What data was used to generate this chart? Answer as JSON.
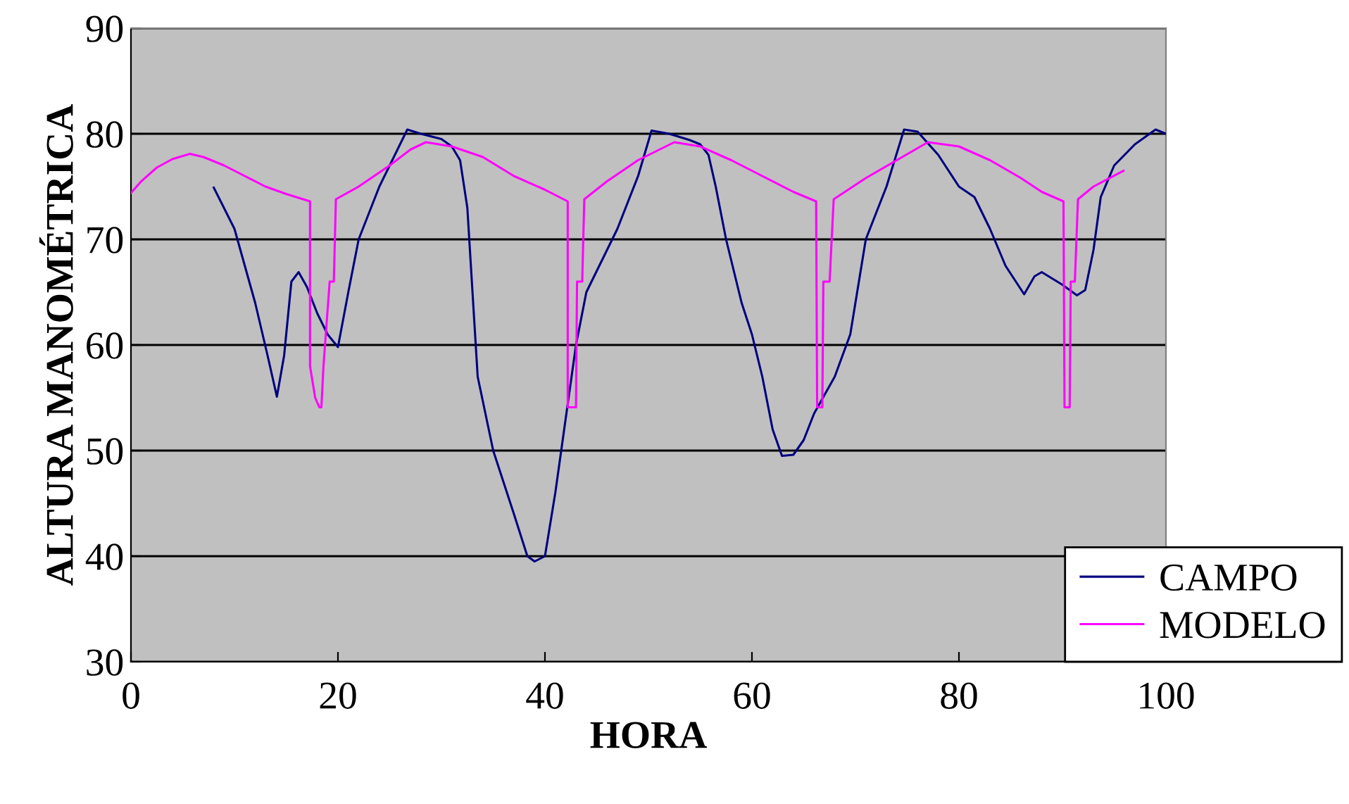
{
  "chart_data": {
    "type": "line",
    "xlabel": "HORA",
    "ylabel": "ALTURA MANOMÉTRICA",
    "xlim": [
      0,
      100
    ],
    "xticks": [
      0,
      20,
      40,
      60,
      80,
      100
    ],
    "ylim": [
      30,
      90
    ],
    "yticks": [
      30,
      40,
      50,
      60,
      70,
      80,
      90
    ],
    "grid": "y",
    "legend": "bottom right",
    "marker": "none",
    "line_style": "solid",
    "series": [
      {
        "name": "CAMPO",
        "color": "#000080",
        "x": [
          8,
          10,
          12,
          13.2,
          14.1,
          14.8,
          15.5,
          16.2,
          17,
          18,
          19,
          20,
          21,
          22,
          24,
          26,
          26.7,
          28,
          30,
          31,
          31.8,
          32.5,
          33,
          33.5,
          35,
          37,
          38.3,
          39,
          40,
          41,
          42,
          43,
          44,
          45,
          47,
          49,
          50.3,
          52,
          54,
          55,
          55.8,
          56.5,
          57.5,
          59,
          60,
          61,
          62,
          62.9,
          64,
          65,
          66,
          68,
          69.5,
          71,
          73,
          74.7,
          76,
          78,
          80,
          81.5,
          83,
          84.5,
          86.3,
          87.3,
          88,
          90,
          91.4,
          92.2,
          93,
          93.7,
          95,
          97,
          99,
          100
        ],
        "values": [
          74.9,
          71,
          64,
          59,
          55.1,
          59,
          66,
          66.9,
          65.5,
          63,
          61,
          59.8,
          65,
          70,
          75,
          79,
          80.4,
          80,
          79.5,
          78.8,
          77.5,
          73,
          65,
          57,
          50,
          44,
          40,
          39.5,
          40,
          46,
          53,
          60,
          65,
          67,
          71,
          76,
          80.3,
          80,
          79.4,
          79,
          78,
          75,
          70,
          64,
          61,
          57,
          52,
          49.5,
          49.6,
          51,
          53.5,
          57,
          61,
          70,
          75,
          80.4,
          80.2,
          78,
          75,
          74,
          71,
          67.5,
          64.8,
          66.5,
          66.9,
          65.7,
          64.7,
          65.2,
          69,
          74,
          77,
          79,
          80.4,
          80
        ]
      },
      {
        "name": "MODELO",
        "color": "#ff00ff",
        "x": [
          0,
          1,
          2.5,
          4,
          5.7,
          7,
          9,
          11,
          13,
          15,
          17.3,
          17.3,
          17.8,
          18.2,
          18.4,
          18.6,
          19.2,
          19.6,
          19.8,
          22,
          25,
          27,
          28.5,
          31,
          34,
          37,
          40,
          42.2,
          42.2,
          43,
          43.1,
          43.6,
          43.8,
          46,
          49,
          52.5,
          55,
          58,
          61,
          64,
          66.2,
          66.3,
          66.8,
          66.9,
          67.5,
          67.9,
          71,
          74,
          77,
          80,
          83,
          86,
          88,
          90.1,
          90.2,
          90.7,
          90.8,
          91.2,
          91.5,
          93,
          95.9
        ],
        "values": [
          74.4,
          75.5,
          76.8,
          77.6,
          78.1,
          77.8,
          77,
          76,
          75,
          74.3,
          73.6,
          58,
          55,
          54.1,
          54.1,
          58,
          66,
          66,
          73.8,
          75,
          77,
          78.5,
          79.2,
          78.8,
          77.8,
          76,
          74.7,
          73.6,
          54.1,
          54.1,
          66,
          66,
          73.8,
          75.5,
          77.5,
          79.2,
          78.8,
          77.5,
          76,
          74.5,
          73.6,
          54.1,
          54.1,
          66,
          66,
          73.8,
          75.8,
          77.5,
          79.2,
          78.8,
          77.5,
          75.8,
          74.5,
          73.6,
          54.1,
          54.1,
          66,
          66,
          73.8,
          75,
          76.5
        ]
      }
    ]
  }
}
